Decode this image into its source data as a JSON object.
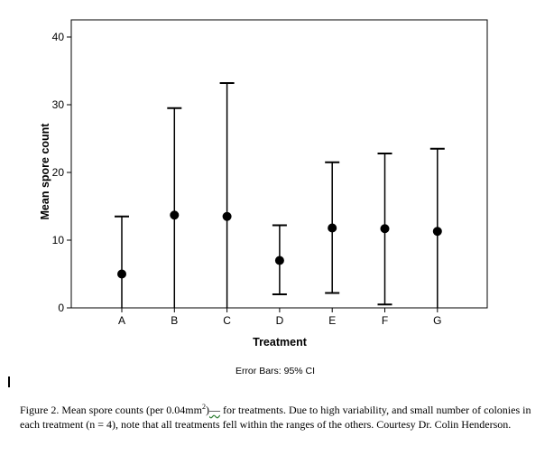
{
  "chart_data": {
    "type": "scatter",
    "title": "",
    "xlabel": "Treatment",
    "ylabel": "Mean spore count",
    "ylim": [
      0,
      40
    ],
    "yticks": [
      0,
      10,
      20,
      30,
      40
    ],
    "categories": [
      "A",
      "B",
      "C",
      "D",
      "E",
      "F",
      "G"
    ],
    "series": [
      {
        "means": [
          5,
          13.7,
          13.5,
          7,
          11.8,
          11.7,
          11.3
        ],
        "lower": [
          -3.5,
          -2,
          -2,
          2,
          2.2,
          0.5,
          -1
        ],
        "upper": [
          13.5,
          29.5,
          33.2,
          12.2,
          21.5,
          22.8,
          23.5
        ]
      }
    ],
    "grid": false,
    "legend": "none",
    "footnote": "Error Bars: 95% CI"
  },
  "caption": {
    "part1": "Figure 2.  Mean spore counts (per 0.04mm",
    "superscript": "2",
    "part2": ")",
    "marked": "—",
    "part3": " for treatments.  Due to high variability, and small number of colonies in each treatment (n = 4), note that all treatments fell within the ranges of the others.  Courtesy Dr. Colin Henderson."
  }
}
